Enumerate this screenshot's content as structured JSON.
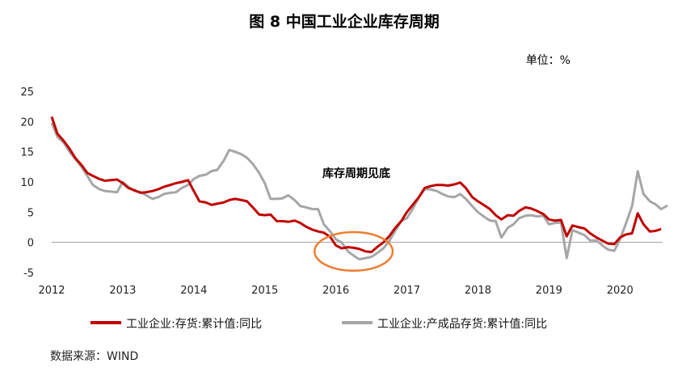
{
  "chart_data": {
    "type": "line",
    "title": "图 8    中国工业企业库存周期",
    "unit": "单位：%",
    "source": "数据来源：WIND",
    "annotation": "库存周期见底",
    "ylim": [
      -5,
      25
    ],
    "yticks": [
      "25",
      "20",
      "15",
      "10",
      "5",
      "0",
      "-5"
    ],
    "xlim": [
      2012.0,
      2020.6
    ],
    "xticks": [
      "2012",
      "2013",
      "2014",
      "2015",
      "2016",
      "2017",
      "2018",
      "2019",
      "2020"
    ],
    "grid": false,
    "legend_position": "bottom",
    "series": [
      {
        "name": "工业企业:存货:累计值:同比",
        "color": "#c00000",
        "points": [
          [
            2012.0,
            20.8
          ],
          [
            2012.08,
            18.0
          ],
          [
            2012.17,
            16.8
          ],
          [
            2012.25,
            15.5
          ],
          [
            2012.33,
            14.0
          ],
          [
            2012.42,
            12.8
          ],
          [
            2012.5,
            11.5
          ],
          [
            2012.58,
            11.0
          ],
          [
            2012.67,
            10.5
          ],
          [
            2012.75,
            10.2
          ],
          [
            2012.83,
            10.3
          ],
          [
            2012.92,
            10.4
          ],
          [
            2013.0,
            9.8
          ],
          [
            2013.08,
            9.0
          ],
          [
            2013.17,
            8.6
          ],
          [
            2013.25,
            8.2
          ],
          [
            2013.33,
            8.3
          ],
          [
            2013.42,
            8.5
          ],
          [
            2013.5,
            8.8
          ],
          [
            2013.58,
            9.2
          ],
          [
            2013.67,
            9.5
          ],
          [
            2013.75,
            9.8
          ],
          [
            2013.83,
            10.0
          ],
          [
            2013.92,
            10.3
          ],
          [
            2014.0,
            8.5
          ],
          [
            2014.08,
            6.8
          ],
          [
            2014.17,
            6.6
          ],
          [
            2014.25,
            6.2
          ],
          [
            2014.33,
            6.4
          ],
          [
            2014.42,
            6.6
          ],
          [
            2014.5,
            7.0
          ],
          [
            2014.58,
            7.2
          ],
          [
            2014.67,
            7.0
          ],
          [
            2014.75,
            6.8
          ],
          [
            2014.83,
            5.8
          ],
          [
            2014.92,
            4.6
          ],
          [
            2015.0,
            4.5
          ],
          [
            2015.08,
            4.6
          ],
          [
            2015.17,
            3.5
          ],
          [
            2015.25,
            3.5
          ],
          [
            2015.33,
            3.4
          ],
          [
            2015.42,
            3.6
          ],
          [
            2015.5,
            3.2
          ],
          [
            2015.58,
            2.6
          ],
          [
            2015.67,
            2.1
          ],
          [
            2015.75,
            1.8
          ],
          [
            2015.83,
            1.6
          ],
          [
            2015.92,
            0.9
          ],
          [
            2016.0,
            -0.5
          ],
          [
            2016.08,
            -1.0
          ],
          [
            2016.17,
            -0.8
          ],
          [
            2016.25,
            -0.9
          ],
          [
            2016.33,
            -1.1
          ],
          [
            2016.42,
            -1.5
          ],
          [
            2016.5,
            -1.6
          ],
          [
            2016.58,
            -0.8
          ],
          [
            2016.67,
            0.0
          ],
          [
            2016.75,
            1.0
          ],
          [
            2016.83,
            2.3
          ],
          [
            2016.92,
            3.5
          ],
          [
            2017.0,
            5.0
          ],
          [
            2017.08,
            6.2
          ],
          [
            2017.17,
            7.5
          ],
          [
            2017.25,
            9.0
          ],
          [
            2017.33,
            9.3
          ],
          [
            2017.42,
            9.5
          ],
          [
            2017.5,
            9.5
          ],
          [
            2017.58,
            9.4
          ],
          [
            2017.67,
            9.6
          ],
          [
            2017.75,
            9.9
          ],
          [
            2017.83,
            9.0
          ],
          [
            2017.92,
            7.5
          ],
          [
            2018.0,
            6.8
          ],
          [
            2018.08,
            6.2
          ],
          [
            2018.17,
            5.5
          ],
          [
            2018.25,
            4.5
          ],
          [
            2018.33,
            3.8
          ],
          [
            2018.42,
            4.5
          ],
          [
            2018.5,
            4.4
          ],
          [
            2018.58,
            5.2
          ],
          [
            2018.67,
            5.8
          ],
          [
            2018.75,
            5.6
          ],
          [
            2018.83,
            5.2
          ],
          [
            2018.92,
            4.7
          ],
          [
            2019.0,
            3.8
          ],
          [
            2019.08,
            3.6
          ],
          [
            2019.17,
            3.7
          ],
          [
            2019.25,
            1.0
          ],
          [
            2019.33,
            2.8
          ],
          [
            2019.42,
            2.5
          ],
          [
            2019.5,
            2.3
          ],
          [
            2019.58,
            1.5
          ],
          [
            2019.67,
            0.8
          ],
          [
            2019.75,
            0.3
          ],
          [
            2019.83,
            -0.2
          ],
          [
            2019.92,
            -0.3
          ],
          [
            2020.0,
            0.8
          ],
          [
            2020.08,
            1.3
          ],
          [
            2020.17,
            1.5
          ],
          [
            2020.25,
            4.8
          ],
          [
            2020.33,
            3.0
          ],
          [
            2020.42,
            1.8
          ],
          [
            2020.5,
            1.9
          ],
          [
            2020.58,
            2.2
          ]
        ]
      },
      {
        "name": "工业企业:产成品存货:累计值:同比",
        "color": "#a6a6a6",
        "points": [
          [
            2012.0,
            19.8
          ],
          [
            2012.08,
            17.5
          ],
          [
            2012.17,
            16.5
          ],
          [
            2012.25,
            15.0
          ],
          [
            2012.33,
            13.8
          ],
          [
            2012.42,
            12.5
          ],
          [
            2012.5,
            11.0
          ],
          [
            2012.58,
            9.5
          ],
          [
            2012.67,
            8.8
          ],
          [
            2012.75,
            8.5
          ],
          [
            2012.83,
            8.4
          ],
          [
            2012.92,
            8.3
          ],
          [
            2013.0,
            10.0
          ],
          [
            2013.08,
            9.2
          ],
          [
            2013.17,
            8.5
          ],
          [
            2013.25,
            8.3
          ],
          [
            2013.33,
            7.8
          ],
          [
            2013.42,
            7.2
          ],
          [
            2013.5,
            7.5
          ],
          [
            2013.58,
            8.0
          ],
          [
            2013.67,
            8.2
          ],
          [
            2013.75,
            8.3
          ],
          [
            2013.83,
            9.0
          ],
          [
            2013.92,
            9.5
          ],
          [
            2014.0,
            10.5
          ],
          [
            2014.08,
            11.0
          ],
          [
            2014.17,
            11.2
          ],
          [
            2014.25,
            11.8
          ],
          [
            2014.33,
            12.0
          ],
          [
            2014.42,
            13.5
          ],
          [
            2014.5,
            15.3
          ],
          [
            2014.58,
            15.0
          ],
          [
            2014.67,
            14.6
          ],
          [
            2014.75,
            14.0
          ],
          [
            2014.83,
            13.0
          ],
          [
            2014.92,
            11.5
          ],
          [
            2015.0,
            9.8
          ],
          [
            2015.08,
            7.2
          ],
          [
            2015.17,
            7.2
          ],
          [
            2015.25,
            7.3
          ],
          [
            2015.33,
            7.8
          ],
          [
            2015.42,
            7.0
          ],
          [
            2015.5,
            6.0
          ],
          [
            2015.58,
            5.8
          ],
          [
            2015.67,
            5.5
          ],
          [
            2015.75,
            5.5
          ],
          [
            2015.83,
            3.0
          ],
          [
            2015.92,
            1.8
          ],
          [
            2016.0,
            0.5
          ],
          [
            2016.08,
            0.0
          ],
          [
            2016.17,
            -1.5
          ],
          [
            2016.25,
            -2.2
          ],
          [
            2016.33,
            -2.8
          ],
          [
            2016.42,
            -2.6
          ],
          [
            2016.5,
            -2.4
          ],
          [
            2016.58,
            -1.8
          ],
          [
            2016.67,
            -1.0
          ],
          [
            2016.75,
            0.2
          ],
          [
            2016.83,
            1.8
          ],
          [
            2016.92,
            3.5
          ],
          [
            2017.0,
            4.0
          ],
          [
            2017.08,
            5.5
          ],
          [
            2017.17,
            7.5
          ],
          [
            2017.25,
            8.8
          ],
          [
            2017.33,
            8.8
          ],
          [
            2017.42,
            8.5
          ],
          [
            2017.5,
            8.0
          ],
          [
            2017.58,
            7.6
          ],
          [
            2017.67,
            7.5
          ],
          [
            2017.75,
            8.0
          ],
          [
            2017.83,
            7.2
          ],
          [
            2017.92,
            6.0
          ],
          [
            2018.0,
            5.0
          ],
          [
            2018.08,
            4.3
          ],
          [
            2018.17,
            3.6
          ],
          [
            2018.25,
            3.5
          ],
          [
            2018.33,
            0.8
          ],
          [
            2018.42,
            2.4
          ],
          [
            2018.5,
            3.0
          ],
          [
            2018.58,
            4.0
          ],
          [
            2018.67,
            4.4
          ],
          [
            2018.75,
            4.5
          ],
          [
            2018.83,
            4.3
          ],
          [
            2018.92,
            4.4
          ],
          [
            2019.0,
            3.0
          ],
          [
            2019.08,
            3.2
          ],
          [
            2019.17,
            3.3
          ],
          [
            2019.25,
            -2.6
          ],
          [
            2019.33,
            2.0
          ],
          [
            2019.42,
            1.6
          ],
          [
            2019.5,
            1.2
          ],
          [
            2019.58,
            0.3
          ],
          [
            2019.67,
            0.3
          ],
          [
            2019.75,
            -0.5
          ],
          [
            2019.83,
            -1.2
          ],
          [
            2019.92,
            -1.4
          ],
          [
            2020.0,
            0.5
          ],
          [
            2020.08,
            3.0
          ],
          [
            2020.17,
            6.0
          ],
          [
            2020.25,
            11.8
          ],
          [
            2020.33,
            8.0
          ],
          [
            2020.42,
            6.8
          ],
          [
            2020.5,
            6.3
          ],
          [
            2020.58,
            5.5
          ],
          [
            2020.67,
            6.1
          ]
        ]
      }
    ],
    "highlight": {
      "shape": "ellipse",
      "color": "#ed7d31",
      "x_center": 2016.25,
      "y_center": -1.5,
      "x_radius": 0.55,
      "y_radius": 3.2
    }
  }
}
